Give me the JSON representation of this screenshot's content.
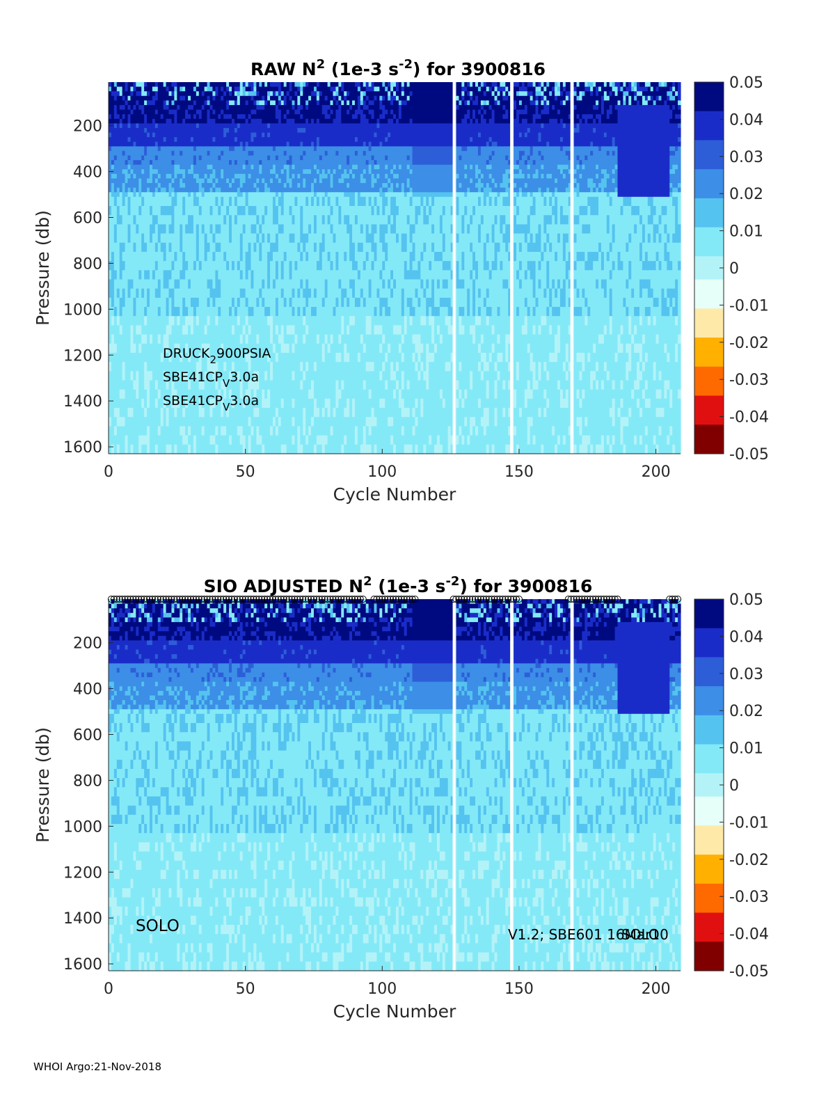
{
  "footer": "WHOI Argo:21-Nov-2018",
  "colors": {
    "colormap": [
      "#800000",
      "#e11010",
      "#ff6a00",
      "#ffb000",
      "#ffe9a8",
      "#e6fff8",
      "#b3f3f8",
      "#84e9f7",
      "#55c3ef",
      "#3c8ee6",
      "#2d5ed8",
      "#1a2cc8",
      "#000a80"
    ]
  },
  "chart_data": [
    {
      "type": "heatmap",
      "panel": "top",
      "title": "RAW N² (1e-3 s⁻²) for 3900816",
      "title_parts": {
        "pre": "RAW N",
        "sup1": "2",
        "mid": " (1e-3 s",
        "sup2": "-2",
        "post": ") for 3900816"
      },
      "xlabel": "Cycle Number",
      "ylabel": "Pressure (db)",
      "xlim": [
        0,
        209
      ],
      "ylim": [
        1630,
        10
      ],
      "xticks": [
        0,
        50,
        100,
        150,
        200
      ],
      "yticks": [
        200,
        400,
        600,
        800,
        1000,
        1200,
        1400,
        1600
      ],
      "colorbar": {
        "range": [
          -0.05,
          0.05
        ],
        "ticks": [
          "0.05",
          "0.04",
          "0.03",
          "0.02",
          "0.01",
          "0",
          "-0.01",
          "-0.02",
          "-0.03",
          "-0.04",
          "-0.05"
        ]
      },
      "annotations": [
        {
          "base": "DRUCK",
          "sub": "2",
          "rest": "900PSIA"
        },
        {
          "base": "SBE41CP",
          "sub": "V",
          "rest": "3.0a"
        },
        {
          "base": "SBE41CP",
          "sub": "V",
          "rest": "3.0a"
        }
      ],
      "missing_cycles": [
        126,
        147,
        169
      ],
      "layers": [
        {
          "from": 10,
          "to": 190,
          "value": 0.044
        },
        {
          "from": 190,
          "to": 280,
          "value": 0.038
        },
        {
          "from": 280,
          "to": 360,
          "value": 0.024
        },
        {
          "from": 360,
          "to": 490,
          "value": 0.021
        },
        {
          "from": 490,
          "to": 1000,
          "value": 0.01
        },
        {
          "from": 1000,
          "to": 1630,
          "value": 0.006
        }
      ]
    },
    {
      "type": "heatmap",
      "panel": "bottom",
      "title": "SIO ADJUSTED N² (1e-3 s⁻²) for 3900816",
      "title_parts": {
        "pre": "SIO  ADJUSTED N",
        "sup1": "2",
        "mid": " (1e-3 s",
        "sup2": "-2",
        "post": ") for 3900816"
      },
      "xlabel": "Cycle Number",
      "ylabel": "Pressure (db)",
      "xlim": [
        0,
        209
      ],
      "ylim": [
        1630,
        10
      ],
      "xticks": [
        0,
        50,
        100,
        150,
        200
      ],
      "yticks": [
        200,
        400,
        600,
        800,
        1000,
        1200,
        1400,
        1600
      ],
      "colorbar": {
        "range": [
          -0.05,
          0.05
        ],
        "ticks": [
          "0.05",
          "0.04",
          "0.03",
          "0.02",
          "0.01",
          "0",
          "-0.01",
          "-0.02",
          "-0.03",
          "-0.04",
          "-0.05"
        ]
      },
      "annotations_left": "SOLO",
      "annotations_right": "V1.2; SBE601 16Mar10",
      "annotations_right_overlap": "SOLO",
      "missing_cycles": [
        126,
        147,
        169
      ],
      "layers": [
        {
          "from": 10,
          "to": 190,
          "value": 0.044
        },
        {
          "from": 190,
          "to": 280,
          "value": 0.038
        },
        {
          "from": 280,
          "to": 360,
          "value": 0.024
        },
        {
          "from": 360,
          "to": 490,
          "value": 0.021
        },
        {
          "from": 490,
          "to": 1000,
          "value": 0.01
        },
        {
          "from": 1000,
          "to": 1630,
          "value": 0.006
        }
      ]
    }
  ]
}
